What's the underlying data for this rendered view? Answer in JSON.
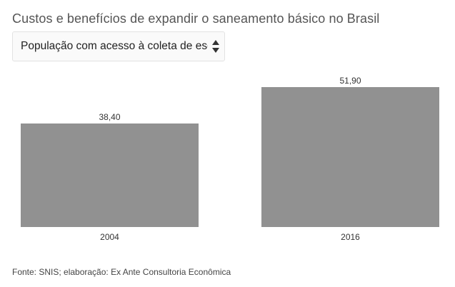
{
  "header": {
    "title": "Custos e benefícios de expandir o saneamento básico no Brasil"
  },
  "selector": {
    "selected_label": "População com acesso à coleta de esgoto (%)"
  },
  "chart_data": {
    "type": "bar",
    "categories": [
      "2004",
      "2016"
    ],
    "values": [
      38.4,
      51.9
    ],
    "value_labels": [
      "38,40",
      "51,90"
    ],
    "ylim": [
      0,
      60
    ],
    "grid": false,
    "bar_color": "#919191"
  },
  "footer": {
    "source": "Fonte: SNIS; elaboração: Ex Ante Consultoria Econômica"
  }
}
